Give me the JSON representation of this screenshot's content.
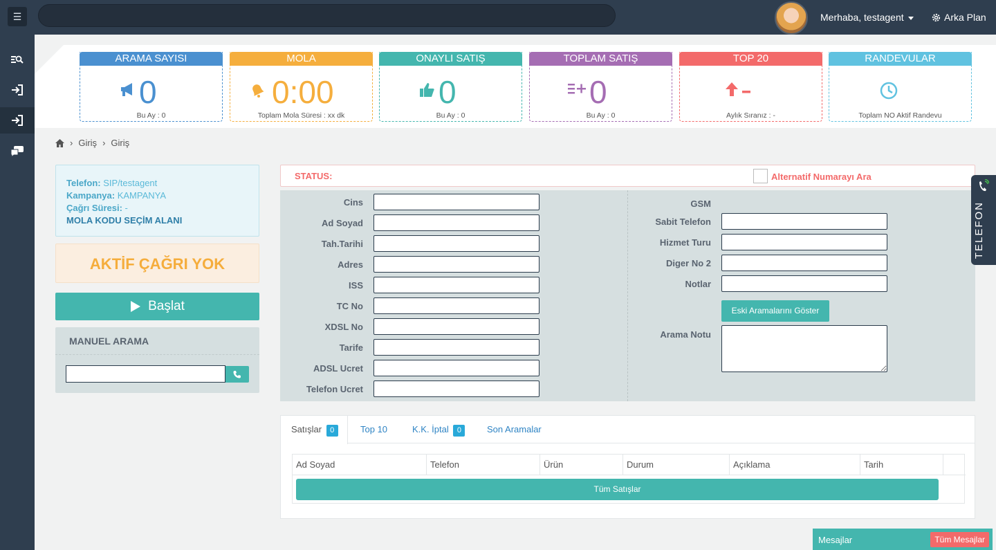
{
  "topbar": {
    "greeting": "Merhaba, testagent",
    "background_label": "Arka Plan"
  },
  "stats": [
    {
      "title": "ARAMA SAYISI",
      "value": "0",
      "footer": "Bu Ay : 0",
      "color": "#4a90d0",
      "icon": "megaphone-icon"
    },
    {
      "title": "MOLA",
      "value": "0:00",
      "footer": "Toplam Mola Süresi : xx dk",
      "color": "#f5ae3d",
      "icon": "bell-icon"
    },
    {
      "title": "ONAYLI SATIŞ",
      "value": "0",
      "footer": "Bu Ay : 0",
      "color": "#44b6ae",
      "icon": "thumbs-up-icon"
    },
    {
      "title": "TOPLAM SATIŞ",
      "value": "0",
      "footer": "Bu Ay : 0",
      "color": "#a56db3",
      "icon": "list-plus-icon"
    },
    {
      "title": "TOP 20",
      "value": "",
      "footer": "Aylık Sıranız : -",
      "color": "#f36a6a",
      "icon": "arrow-up-icon"
    },
    {
      "title": "RANDEVULAR",
      "value": "",
      "footer": "Toplam NO Aktif Randevu",
      "color": "#60c2e0",
      "icon": "clock-icon"
    }
  ],
  "breadcrumb": [
    "Giriş",
    "Giriş"
  ],
  "info": {
    "phone_label": "Telefon:",
    "phone_value": "SIP/testagent",
    "campaign_label": "Kampanya:",
    "campaign_value": "KAMPANYA",
    "duration_label": "Çağrı Süresi:",
    "duration_value": "-",
    "break_code": "MOLA KODU SEÇİM ALANI"
  },
  "no_active_call": "AKTİF ÇAĞRI YOK",
  "start_button": "Başlat",
  "manual_call": {
    "title": "MANUEL ARAMA",
    "value": ""
  },
  "status": {
    "label": "STATUS:",
    "alt_number": "Alternatif Numarayı Ara"
  },
  "form_left": [
    {
      "label": "Cins",
      "value": ""
    },
    {
      "label": "Ad Soyad",
      "value": ""
    },
    {
      "label": "Tah.Tarihi",
      "value": ""
    },
    {
      "label": "Adres",
      "value": ""
    },
    {
      "label": "ISS",
      "value": ""
    },
    {
      "label": "TC No",
      "value": ""
    },
    {
      "label": "XDSL No",
      "value": ""
    },
    {
      "label": "Tarife",
      "value": ""
    },
    {
      "label": "ADSL Ucret",
      "value": ""
    },
    {
      "label": "Telefon Ucret",
      "value": ""
    }
  ],
  "form_right": {
    "gsm_label": "GSM",
    "fields": [
      {
        "label": "Sabit Telefon",
        "value": ""
      },
      {
        "label": "Hizmet Turu",
        "value": ""
      },
      {
        "label": "Diger No 2",
        "value": ""
      },
      {
        "label": "Notlar",
        "value": ""
      }
    ],
    "old_calls_button": "Eski Aramalarını Göster",
    "notes_label": "Arama Notu"
  },
  "tabs": [
    {
      "label": "Satışlar",
      "badge": "0"
    },
    {
      "label": "Top 10",
      "badge": ""
    },
    {
      "label": "K.K. İptal",
      "badge": "0"
    },
    {
      "label": "Son Aramalar",
      "badge": ""
    }
  ],
  "sales_table": {
    "columns": [
      "Ad Soyad",
      "Telefon",
      "Ürün",
      "Durum",
      "Açıklama",
      "Tarih"
    ],
    "all_sales_button": "Tüm Satışlar"
  },
  "phone_tab": "TELEFON",
  "messages": {
    "label": "Mesajlar",
    "all_button": "Tüm Mesajlar"
  }
}
